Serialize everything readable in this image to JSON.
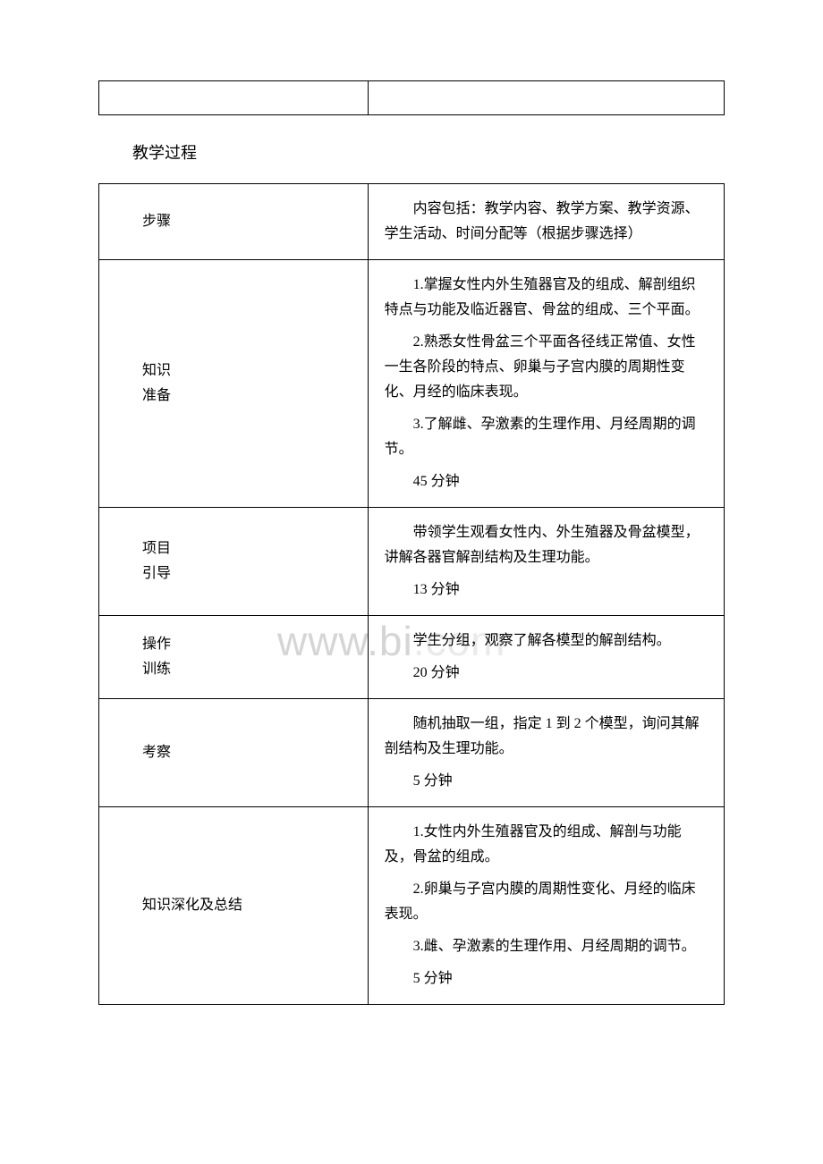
{
  "section_title": "教学过程",
  "watermark": "www.bi",
  "watermark_tail": ".com",
  "header_row": {
    "left": "步骤",
    "right": "内容包括：教学内容、教学方案、教学资源、学生活动、时间分配等（根据步骤选择）"
  },
  "rows": [
    {
      "label_lines": [
        "知识",
        "准备"
      ],
      "paragraphs": [
        "1.掌握女性内外生殖器官及的组成、解剖组织特点与功能及临近器官、骨盆的组成、三个平面。",
        "2.熟悉女性骨盆三个平面各径线正常值、女性一生各阶段的特点、卵巢与子宫内膜的周期性变化、月经的临床表现。",
        "3.了解雌、孕激素的生理作用、月经周期的调节。"
      ],
      "time": "45 分钟"
    },
    {
      "label_lines": [
        "项目",
        "引导"
      ],
      "paragraphs": [
        "带领学生观看女性内、外生殖器及骨盆模型，讲解各器官解剖结构及生理功能。"
      ],
      "time": "13 分钟"
    },
    {
      "label_lines": [
        "操作",
        "训练"
      ],
      "paragraphs": [
        "学生分组，观察了解各模型的解剖结构。"
      ],
      "time": "20 分钟"
    },
    {
      "label_lines": [
        "考察"
      ],
      "paragraphs": [
        "随机抽取一组，指定 1 到 2 个模型，询问其解剖结构及生理功能。"
      ],
      "time": "5 分钟"
    },
    {
      "label_lines": [
        "知识深化及总结"
      ],
      "paragraphs": [
        "1.女性内外生殖器官及的组成、解剖与功能及，骨盆的组成。",
        "2.卵巢与子宫内膜的周期性变化、月经的临床表现。",
        "3.雌、孕激素的生理作用、月经周期的调节。"
      ],
      "time": "5 分钟"
    }
  ]
}
